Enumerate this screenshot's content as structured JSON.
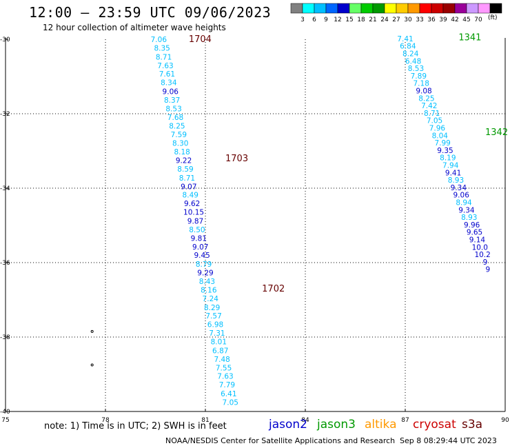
{
  "header": {
    "title": "12:00 – 23:59 UTC 09/06/2023",
    "subtitle": "12 hour collection of altimeter wave heights"
  },
  "footer": {
    "note": "note: 1) Time is in UTC; 2) SWH is in feet",
    "credit": "NOAA/NESDIS Center for Satellite Applications and Research",
    "timestamp": "Sep  8 08:29:44 UTC 2023"
  },
  "satellites": [
    {
      "name": "jason2",
      "color": "#0000cc"
    },
    {
      "name": "jason3",
      "color": "#009900"
    },
    {
      "name": "altika",
      "color": "#ff9900"
    },
    {
      "name": "cryosat",
      "color": "#cc0000"
    },
    {
      "name": "s3a",
      "color": "#660000"
    }
  ],
  "colorbar": {
    "unit": "(ft)",
    "bins": [
      {
        "label": "",
        "color": "#808080"
      },
      {
        "label": "3",
        "color": "#00ffff"
      },
      {
        "label": "6",
        "color": "#00bfff"
      },
      {
        "label": "9",
        "color": "#0066ff"
      },
      {
        "label": "12",
        "color": "#0000cc"
      },
      {
        "label": "15",
        "color": "#66ff66"
      },
      {
        "label": "18",
        "color": "#00cc00"
      },
      {
        "label": "21",
        "color": "#009900"
      },
      {
        "label": "24",
        "color": "#ffff00"
      },
      {
        "label": "27",
        "color": "#ffcc00"
      },
      {
        "label": "30",
        "color": "#ff9900"
      },
      {
        "label": "33",
        "color": "#ff0000"
      },
      {
        "label": "36",
        "color": "#cc0000"
      },
      {
        "label": "39",
        "color": "#990000"
      },
      {
        "label": "42",
        "color": "#990099"
      },
      {
        "label": "45",
        "color": "#cc99ff"
      },
      {
        "label": "70",
        "color": "#ff99ff"
      },
      {
        "label": "",
        "color": "#000000"
      }
    ]
  },
  "chart_data": {
    "type": "scatter",
    "xlim": [
      75,
      90
    ],
    "ylim": [
      -40,
      -30
    ],
    "xticks": [
      {
        "v": 75,
        "label": "75"
      },
      {
        "v": 78,
        "label": "78"
      },
      {
        "v": 81,
        "label": "81"
      },
      {
        "v": 84,
        "label": "84"
      },
      {
        "v": 87,
        "label": "87"
      },
      {
        "v": 90,
        "label": "90"
      }
    ],
    "yticks": [
      {
        "v": -30,
        "label": "-30"
      },
      {
        "v": -32,
        "label": "-32"
      },
      {
        "v": -34,
        "label": "-34"
      },
      {
        "v": -36,
        "label": "-36"
      },
      {
        "v": -38,
        "label": "-38"
      },
      {
        "v": -40,
        "label": "-40"
      }
    ],
    "time_labels": [
      {
        "lon": 80.5,
        "lat": -30.0,
        "label": "1704",
        "color": "#660000"
      },
      {
        "lon": 81.6,
        "lat": -33.2,
        "label": "1703",
        "color": "#660000"
      },
      {
        "lon": 82.7,
        "lat": -36.7,
        "label": "1702",
        "color": "#660000"
      },
      {
        "lon": 88.6,
        "lat": -29.95,
        "label": "1341",
        "color": "#009900"
      },
      {
        "lon": 89.4,
        "lat": -32.5,
        "label": "1342",
        "color": "#009900"
      }
    ],
    "points": [
      {
        "lon": 79.6,
        "lat": -30.0,
        "v": "7.06",
        "c": "#00bfff"
      },
      {
        "lon": 79.7,
        "lat": -30.23,
        "v": "8.35",
        "c": "#00bfff"
      },
      {
        "lon": 79.75,
        "lat": -30.47,
        "v": "8.71",
        "c": "#00bfff"
      },
      {
        "lon": 79.8,
        "lat": -30.7,
        "v": "7.63",
        "c": "#00bfff"
      },
      {
        "lon": 79.85,
        "lat": -30.93,
        "v": "7.61",
        "c": "#00bfff"
      },
      {
        "lon": 79.9,
        "lat": -31.16,
        "v": "8.34",
        "c": "#00bfff"
      },
      {
        "lon": 79.95,
        "lat": -31.4,
        "v": "9.06",
        "c": "#0000cc"
      },
      {
        "lon": 80.0,
        "lat": -31.63,
        "v": "8.37",
        "c": "#00bfff"
      },
      {
        "lon": 80.05,
        "lat": -31.86,
        "v": "8.53",
        "c": "#00bfff"
      },
      {
        "lon": 80.1,
        "lat": -32.09,
        "v": "7.68",
        "c": "#00bfff"
      },
      {
        "lon": 80.15,
        "lat": -32.32,
        "v": "8.25",
        "c": "#00bfff"
      },
      {
        "lon": 80.2,
        "lat": -32.56,
        "v": "7.59",
        "c": "#00bfff"
      },
      {
        "lon": 80.25,
        "lat": -32.79,
        "v": "8.30",
        "c": "#00bfff"
      },
      {
        "lon": 80.3,
        "lat": -33.02,
        "v": "8.18",
        "c": "#00bfff"
      },
      {
        "lon": 80.35,
        "lat": -33.25,
        "v": "9.22",
        "c": "#0000cc"
      },
      {
        "lon": 80.4,
        "lat": -33.48,
        "v": "8.59",
        "c": "#00bfff"
      },
      {
        "lon": 80.45,
        "lat": -33.72,
        "v": "8.71",
        "c": "#00bfff"
      },
      {
        "lon": 80.5,
        "lat": -33.95,
        "v": "9.07",
        "c": "#0000cc"
      },
      {
        "lon": 80.55,
        "lat": -34.18,
        "v": "8.49",
        "c": "#00bfff"
      },
      {
        "lon": 80.6,
        "lat": -34.41,
        "v": "9.62",
        "c": "#0000cc"
      },
      {
        "lon": 80.65,
        "lat": -34.64,
        "v": "10.15",
        "c": "#0000cc"
      },
      {
        "lon": 80.7,
        "lat": -34.88,
        "v": "9.87",
        "c": "#0000cc"
      },
      {
        "lon": 80.75,
        "lat": -35.11,
        "v": "8.50",
        "c": "#00bfff"
      },
      {
        "lon": 80.8,
        "lat": -35.34,
        "v": "9.81",
        "c": "#0000cc"
      },
      {
        "lon": 80.85,
        "lat": -35.57,
        "v": "9.07",
        "c": "#0000cc"
      },
      {
        "lon": 80.9,
        "lat": -35.8,
        "v": "9.45",
        "c": "#0000cc"
      },
      {
        "lon": 80.95,
        "lat": -36.04,
        "v": "8.79",
        "c": "#00bfff"
      },
      {
        "lon": 81.0,
        "lat": -36.27,
        "v": "9.29",
        "c": "#0000cc"
      },
      {
        "lon": 81.05,
        "lat": -36.5,
        "v": "8.43",
        "c": "#00bfff"
      },
      {
        "lon": 81.1,
        "lat": -36.73,
        "v": "8.16",
        "c": "#00bfff"
      },
      {
        "lon": 81.15,
        "lat": -36.96,
        "v": "7.24",
        "c": "#00bfff"
      },
      {
        "lon": 81.2,
        "lat": -37.2,
        "v": "8.29",
        "c": "#00bfff"
      },
      {
        "lon": 81.25,
        "lat": -37.43,
        "v": "7.57",
        "c": "#00bfff"
      },
      {
        "lon": 81.3,
        "lat": -37.66,
        "v": "6.98",
        "c": "#00bfff"
      },
      {
        "lon": 81.35,
        "lat": -37.89,
        "v": "7.31",
        "c": "#00bfff"
      },
      {
        "lon": 81.4,
        "lat": -38.12,
        "v": "8.01",
        "c": "#00bfff"
      },
      {
        "lon": 81.45,
        "lat": -38.36,
        "v": "6.87",
        "c": "#00bfff"
      },
      {
        "lon": 81.5,
        "lat": -38.59,
        "v": "7.48",
        "c": "#00bfff"
      },
      {
        "lon": 81.55,
        "lat": -38.82,
        "v": "7.55",
        "c": "#00bfff"
      },
      {
        "lon": 81.6,
        "lat": -39.05,
        "v": "7.63",
        "c": "#00bfff"
      },
      {
        "lon": 81.65,
        "lat": -39.28,
        "v": "7.79",
        "c": "#00bfff"
      },
      {
        "lon": 81.7,
        "lat": -39.52,
        "v": "6.41",
        "c": "#00bfff"
      },
      {
        "lon": 81.75,
        "lat": -39.75,
        "v": "7.05",
        "c": "#00bfff"
      },
      {
        "lon": 87.0,
        "lat": -29.98,
        "v": "7.41",
        "c": "#00bfff"
      },
      {
        "lon": 87.08,
        "lat": -30.18,
        "v": "6.84",
        "c": "#00bfff"
      },
      {
        "lon": 87.16,
        "lat": -30.38,
        "v": "8.24",
        "c": "#00bfff"
      },
      {
        "lon": 87.24,
        "lat": -30.58,
        "v": "6.48",
        "c": "#00bfff"
      },
      {
        "lon": 87.32,
        "lat": -30.78,
        "v": "8.53",
        "c": "#00bfff"
      },
      {
        "lon": 87.4,
        "lat": -30.98,
        "v": "7.89",
        "c": "#00bfff"
      },
      {
        "lon": 87.48,
        "lat": -31.18,
        "v": "7.18",
        "c": "#00bfff"
      },
      {
        "lon": 87.56,
        "lat": -31.38,
        "v": "9.08",
        "c": "#0000cc"
      },
      {
        "lon": 87.64,
        "lat": -31.58,
        "v": "8.25",
        "c": "#00bfff"
      },
      {
        "lon": 87.72,
        "lat": -31.78,
        "v": "7.42",
        "c": "#00bfff"
      },
      {
        "lon": 87.8,
        "lat": -31.98,
        "v": "8.71",
        "c": "#00bfff"
      },
      {
        "lon": 87.88,
        "lat": -32.18,
        "v": "7.05",
        "c": "#00bfff"
      },
      {
        "lon": 87.96,
        "lat": -32.38,
        "v": "7.96",
        "c": "#00bfff"
      },
      {
        "lon": 88.04,
        "lat": -32.58,
        "v": "8.04",
        "c": "#00bfff"
      },
      {
        "lon": 88.12,
        "lat": -32.78,
        "v": "7.99",
        "c": "#00bfff"
      },
      {
        "lon": 88.2,
        "lat": -32.98,
        "v": "9.35",
        "c": "#0000cc"
      },
      {
        "lon": 88.28,
        "lat": -33.18,
        "v": "8.19",
        "c": "#00bfff"
      },
      {
        "lon": 88.36,
        "lat": -33.38,
        "v": "7.94",
        "c": "#00bfff"
      },
      {
        "lon": 88.44,
        "lat": -33.58,
        "v": "9.41",
        "c": "#0000cc"
      },
      {
        "lon": 88.52,
        "lat": -33.78,
        "v": "8.93",
        "c": "#00bfff"
      },
      {
        "lon": 88.6,
        "lat": -33.98,
        "v": "9.34",
        "c": "#0000cc"
      },
      {
        "lon": 88.68,
        "lat": -34.18,
        "v": "9.06",
        "c": "#0000cc"
      },
      {
        "lon": 88.76,
        "lat": -34.38,
        "v": "8.94",
        "c": "#00bfff"
      },
      {
        "lon": 88.84,
        "lat": -34.58,
        "v": "9.34",
        "c": "#0000cc"
      },
      {
        "lon": 88.92,
        "lat": -34.78,
        "v": "8.93",
        "c": "#00bfff"
      },
      {
        "lon": 89.0,
        "lat": -34.98,
        "v": "9.96",
        "c": "#0000cc"
      },
      {
        "lon": 89.08,
        "lat": -35.18,
        "v": "9.65",
        "c": "#0000cc"
      },
      {
        "lon": 89.16,
        "lat": -35.38,
        "v": "9.14",
        "c": "#0000cc"
      },
      {
        "lon": 89.24,
        "lat": -35.58,
        "v": "10.0",
        "c": "#0000cc"
      },
      {
        "lon": 89.32,
        "lat": -35.78,
        "v": "10.2",
        "c": "#0000cc"
      },
      {
        "lon": 89.4,
        "lat": -35.98,
        "v": "9",
        "c": "#0000cc"
      },
      {
        "lon": 89.48,
        "lat": -36.18,
        "v": "9",
        "c": "#0000cc"
      }
    ],
    "coast_marks": [
      {
        "lon": 77.6,
        "lat": -37.85
      },
      {
        "lon": 77.6,
        "lat": -38.75
      }
    ]
  }
}
